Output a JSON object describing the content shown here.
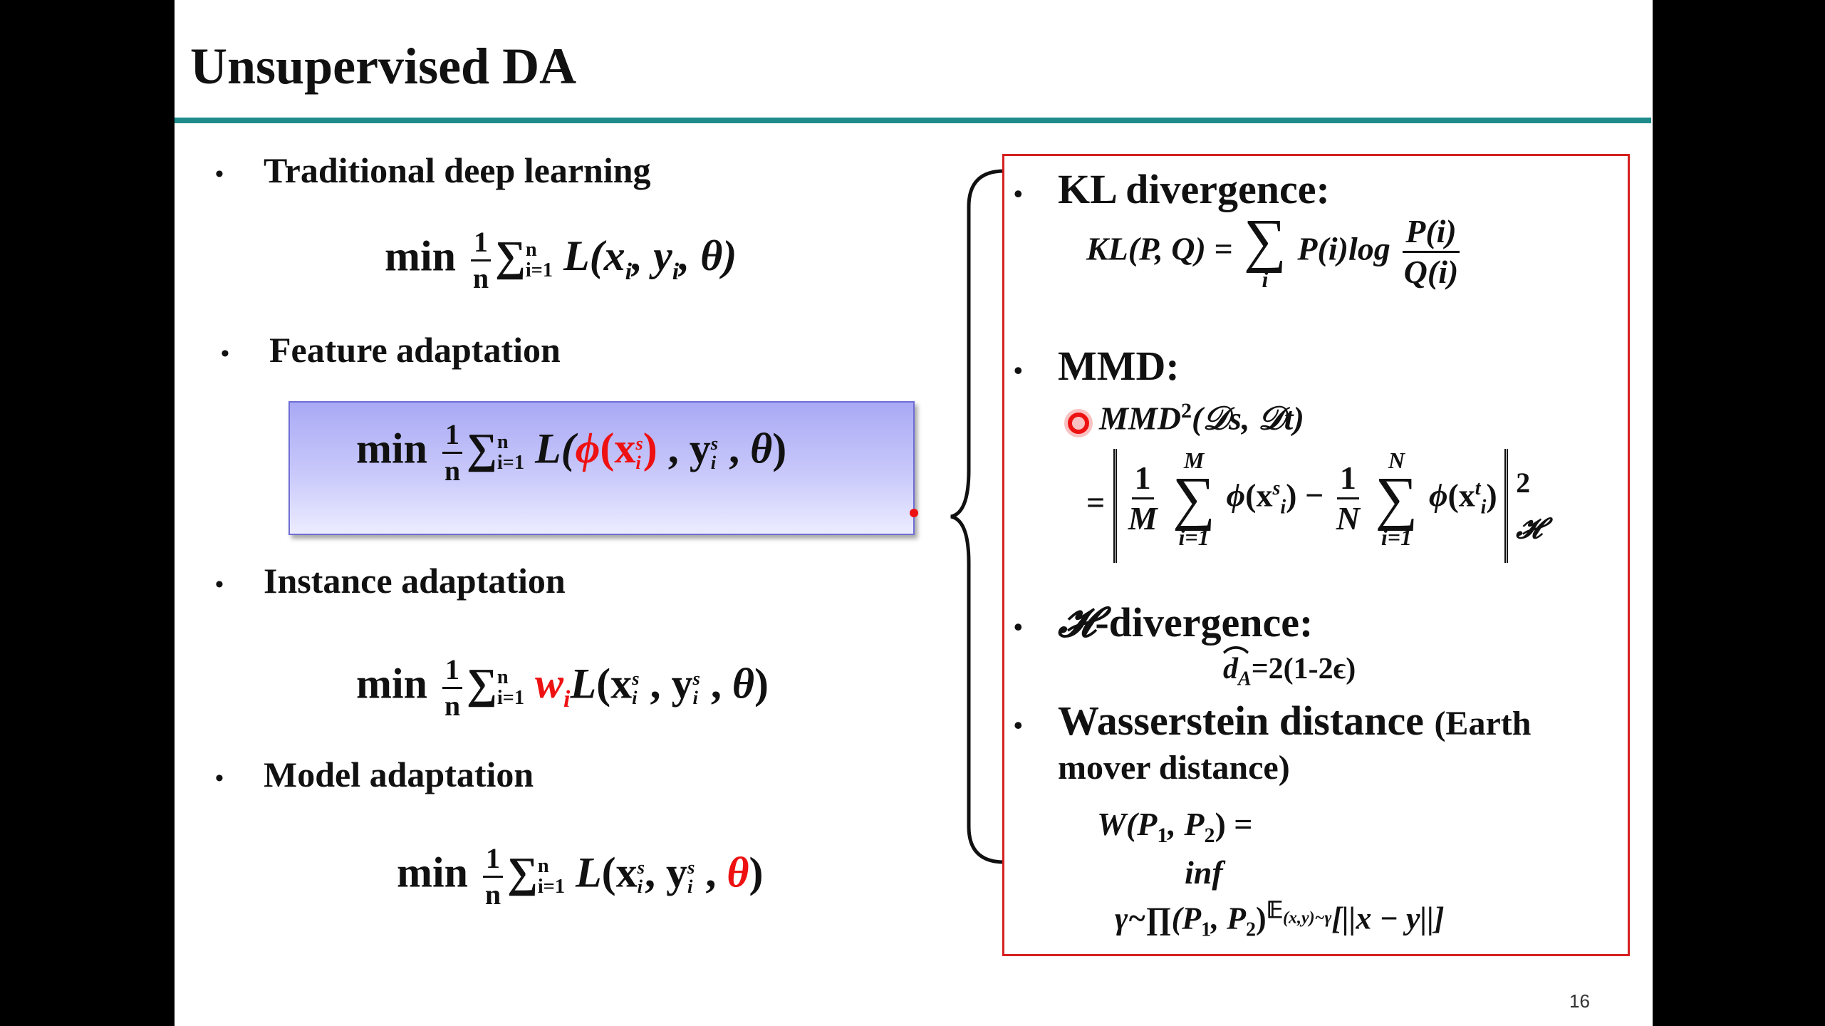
{
  "slide": {
    "title": "Unsupervised DA",
    "page_number": "16",
    "accent_color": "#1f8c8c",
    "highlight_color": "#e11111",
    "panel_border_color": "#d62020"
  },
  "left": {
    "bullets": [
      {
        "label": "Traditional deep learning"
      },
      {
        "label": "Feature adaptation"
      },
      {
        "label": "Instance adaptation"
      },
      {
        "label": "Model adaptation"
      }
    ],
    "eq_min": "min",
    "eq_one": "1",
    "eq_n": "n",
    "eq_sum": "∑",
    "eq_sum_sup": "n",
    "eq_sum_sub": "i=1",
    "eq_weight": "w"
  },
  "right": {
    "bullets": [
      {
        "label": "KL divergence:"
      },
      {
        "label": "MMD:"
      },
      {
        "label": "-divergence:",
        "symbol": "𝓗"
      },
      {
        "label": "Wasserstein distance",
        "paren": "(Earth",
        "line2": "mover distance)"
      }
    ],
    "kl_lhs": "KL(P, Q) =",
    "kl_sum": "∑",
    "kl_sub": "i",
    "kl_term": "P(i)log",
    "kl_num": "P(i)",
    "kl_den": "Q(i)",
    "mmd_lhs": "MMD",
    "mmd_sq": "2",
    "mmd_args": "(𝒟s, 𝒟t)",
    "mmd_eq": "=",
    "mmd_M": "M",
    "mmd_N": "N",
    "mmd_sub": "i=1",
    "mmd_minus": "−",
    "mmd_pow": "2",
    "mmd_space": "𝓗",
    "hdiv_formula": "=2(1-2ϵ)",
    "hdiv_d": "d",
    "hdiv_sub": "A",
    "w_lhs": "W(P",
    "w_one": "1",
    "w_comma": ", P",
    "w_two": "2",
    "w_close": ") =",
    "w_inf": "inf",
    "w_gamma": "γ~∏(P",
    "w_exp": "𝔼",
    "w_exp_sub": "(x,y)~γ",
    "w_norm": "[||x − y||]"
  }
}
